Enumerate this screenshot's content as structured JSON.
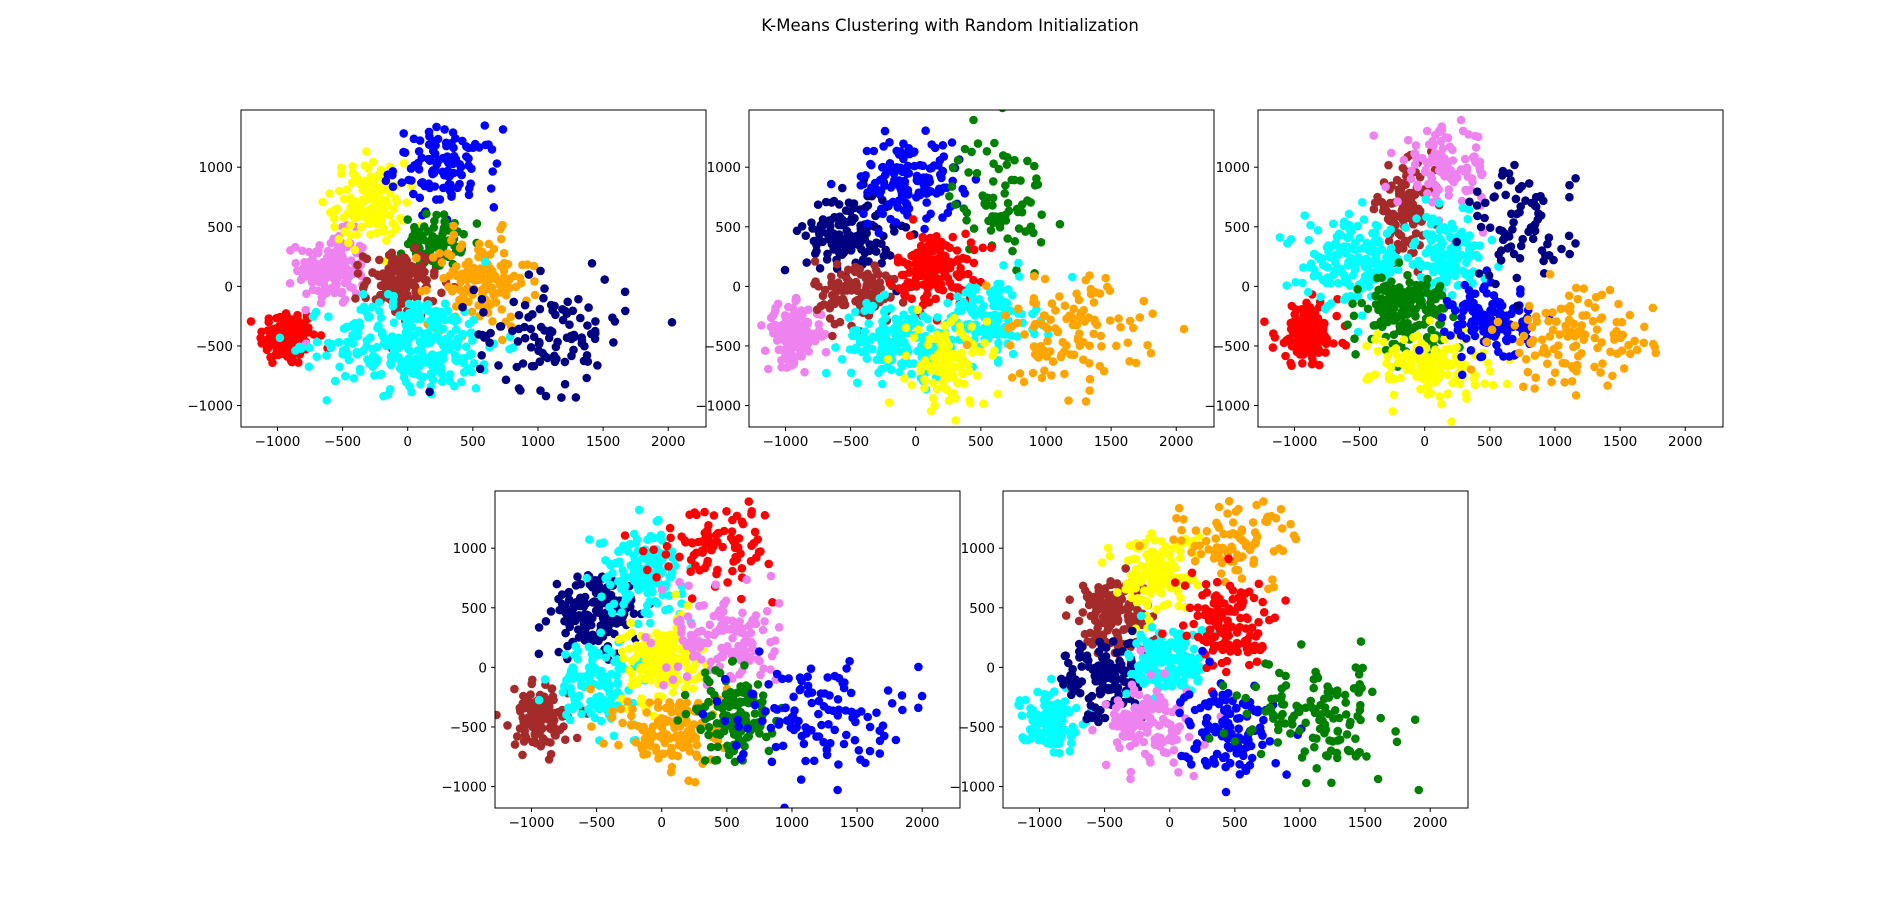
{
  "figure": {
    "title": "K-Means Clustering with Random Initialization"
  },
  "colors": {
    "red": "#ff0000",
    "navy": "#000080",
    "blue": "#0000ff",
    "green": "#008000",
    "yellow": "#ffff00",
    "orange": "#ffa500",
    "cyan": "#00ffff",
    "violet": "#ee82ee",
    "brown": "#a52a2a"
  },
  "chart_data": [
    {
      "type": "scatter",
      "xlim": [
        -1280,
        2290
      ],
      "ylim": [
        -1180,
        1480
      ],
      "xticks": [
        -1000,
        -500,
        0,
        500,
        1000,
        1500,
        2000
      ],
      "yticks": [
        -1000,
        -500,
        0,
        500,
        1000
      ],
      "xtick_labels": [
        "−1000",
        "−500",
        "0",
        "500",
        "1000",
        "1500",
        "2000"
      ],
      "ytick_labels": [
        "−1000",
        "−500",
        "0",
        "500",
        "1000"
      ],
      "grid": false,
      "clusters": [
        {
          "color": "red",
          "cx": -920,
          "cy": -430,
          "sx": 110,
          "sy": 120,
          "n": 130
        },
        {
          "color": "violet",
          "cx": -580,
          "cy": 150,
          "sx": 130,
          "sy": 150,
          "n": 150
        },
        {
          "color": "yellow",
          "cx": -300,
          "cy": 700,
          "sx": 140,
          "sy": 170,
          "n": 140
        },
        {
          "color": "blue",
          "cx": 300,
          "cy": 1000,
          "sx": 200,
          "sy": 160,
          "n": 110
        },
        {
          "color": "green",
          "cx": 200,
          "cy": 380,
          "sx": 110,
          "sy": 110,
          "n": 80
        },
        {
          "color": "brown",
          "cx": -50,
          "cy": 20,
          "sx": 140,
          "sy": 140,
          "n": 130
        },
        {
          "color": "orange",
          "cx": 550,
          "cy": 50,
          "sx": 190,
          "sy": 190,
          "n": 140
        },
        {
          "color": "cyan",
          "cx": 50,
          "cy": -480,
          "sx": 330,
          "sy": 200,
          "n": 300
        },
        {
          "color": "navy",
          "cx": 1100,
          "cy": -400,
          "sx": 290,
          "sy": 230,
          "n": 110
        }
      ]
    },
    {
      "type": "scatter",
      "xlim": [
        -1280,
        2290
      ],
      "ylim": [
        -1180,
        1480
      ],
      "xticks": [
        -1000,
        -500,
        0,
        500,
        1000,
        1500,
        2000
      ],
      "yticks": [
        -1000,
        -500,
        0,
        500,
        1000
      ],
      "xtick_labels": [
        "−1000",
        "−500",
        "0",
        "500",
        "1000",
        "1500",
        "2000"
      ],
      "ytick_labels": [
        "−1000",
        "−500",
        "0",
        "500",
        "1000"
      ],
      "grid": false,
      "clusters": [
        {
          "color": "violet",
          "cx": -940,
          "cy": -400,
          "sx": 110,
          "sy": 120,
          "n": 130
        },
        {
          "color": "navy",
          "cx": -500,
          "cy": 450,
          "sx": 170,
          "sy": 170,
          "n": 160
        },
        {
          "color": "blue",
          "cx": -50,
          "cy": 900,
          "sx": 200,
          "sy": 170,
          "n": 140
        },
        {
          "color": "green",
          "cx": 650,
          "cy": 750,
          "sx": 180,
          "sy": 260,
          "n": 80
        },
        {
          "color": "brown",
          "cx": -450,
          "cy": -50,
          "sx": 160,
          "sy": 140,
          "n": 120
        },
        {
          "color": "red",
          "cx": 150,
          "cy": 150,
          "sx": 150,
          "sy": 150,
          "n": 160
        },
        {
          "color": "cyan",
          "cx": -150,
          "cy": -450,
          "sx": 200,
          "sy": 160,
          "n": 150
        },
        {
          "color": "cyan",
          "cx": 550,
          "cy": -270,
          "sx": 180,
          "sy": 160,
          "n": 130
        },
        {
          "color": "yellow",
          "cx": 250,
          "cy": -650,
          "sx": 150,
          "sy": 190,
          "n": 120
        },
        {
          "color": "orange",
          "cx": 1150,
          "cy": -400,
          "sx": 300,
          "sy": 230,
          "n": 120
        }
      ]
    },
    {
      "type": "scatter",
      "xlim": [
        -1280,
        2290
      ],
      "ylim": [
        -1180,
        1480
      ],
      "xticks": [
        -1000,
        -500,
        0,
        500,
        1000,
        1500,
        2000
      ],
      "yticks": [
        -1000,
        -500,
        0,
        500,
        1000
      ],
      "xtick_labels": [
        "−1000",
        "−500",
        "0",
        "500",
        "1000",
        "1500",
        "2000"
      ],
      "ytick_labels": [
        "−1000",
        "−500",
        "0",
        "500",
        "1000"
      ],
      "grid": false,
      "clusters": [
        {
          "color": "red",
          "cx": -900,
          "cy": -400,
          "sx": 120,
          "sy": 130,
          "n": 140
        },
        {
          "color": "brown",
          "cx": -150,
          "cy": 650,
          "sx": 110,
          "sy": 170,
          "n": 110
        },
        {
          "color": "violet",
          "cx": 150,
          "cy": 1000,
          "sx": 180,
          "sy": 160,
          "n": 110
        },
        {
          "color": "cyan",
          "cx": -550,
          "cy": 200,
          "sx": 190,
          "sy": 170,
          "n": 160
        },
        {
          "color": "cyan",
          "cx": 150,
          "cy": 250,
          "sx": 160,
          "sy": 160,
          "n": 140
        },
        {
          "color": "green",
          "cx": -150,
          "cy": -200,
          "sx": 160,
          "sy": 150,
          "n": 160
        },
        {
          "color": "yellow",
          "cx": 50,
          "cy": -650,
          "sx": 230,
          "sy": 150,
          "n": 140
        },
        {
          "color": "blue",
          "cx": 500,
          "cy": -300,
          "sx": 150,
          "sy": 160,
          "n": 130
        },
        {
          "color": "navy",
          "cx": 750,
          "cy": 500,
          "sx": 200,
          "sy": 250,
          "n": 80
        },
        {
          "color": "orange",
          "cx": 1150,
          "cy": -450,
          "sx": 300,
          "sy": 200,
          "n": 120
        }
      ]
    },
    {
      "type": "scatter",
      "xlim": [
        -1280,
        2290
      ],
      "ylim": [
        -1180,
        1480
      ],
      "xticks": [
        -1000,
        -500,
        0,
        500,
        1000,
        1500,
        2000
      ],
      "yticks": [
        -1000,
        -500,
        0,
        500,
        1000
      ],
      "xtick_labels": [
        "−1000",
        "−500",
        "0",
        "500",
        "1000",
        "1500",
        "2000"
      ],
      "ytick_labels": [
        "−1000",
        "−500",
        "0",
        "500",
        "1000"
      ],
      "grid": false,
      "clusters": [
        {
          "color": "brown",
          "cx": -930,
          "cy": -430,
          "sx": 110,
          "sy": 120,
          "n": 130
        },
        {
          "color": "navy",
          "cx": -500,
          "cy": 450,
          "sx": 170,
          "sy": 170,
          "n": 160
        },
        {
          "color": "cyan",
          "cx": -150,
          "cy": 800,
          "sx": 160,
          "sy": 170,
          "n": 140
        },
        {
          "color": "red",
          "cx": 450,
          "cy": 1050,
          "sx": 250,
          "sy": 170,
          "n": 90
        },
        {
          "color": "cyan",
          "cx": -500,
          "cy": -150,
          "sx": 150,
          "sy": 170,
          "n": 130
        },
        {
          "color": "yellow",
          "cx": 0,
          "cy": 50,
          "sx": 150,
          "sy": 170,
          "n": 170
        },
        {
          "color": "violet",
          "cx": 500,
          "cy": 250,
          "sx": 200,
          "sy": 200,
          "n": 130
        },
        {
          "color": "orange",
          "cx": 100,
          "cy": -550,
          "sx": 200,
          "sy": 170,
          "n": 140
        },
        {
          "color": "green",
          "cx": 550,
          "cy": -400,
          "sx": 150,
          "sy": 200,
          "n": 130
        },
        {
          "color": "blue",
          "cx": 1150,
          "cy": -400,
          "sx": 300,
          "sy": 220,
          "n": 120
        }
      ]
    },
    {
      "type": "scatter",
      "xlim": [
        -1280,
        2290
      ],
      "ylim": [
        -1180,
        1480
      ],
      "xticks": [
        -1000,
        -500,
        0,
        500,
        1000,
        1500,
        2000
      ],
      "yticks": [
        -1000,
        -500,
        0,
        500,
        1000
      ],
      "xtick_labels": [
        "−1000",
        "−500",
        "0",
        "500",
        "1000",
        "1500",
        "2000"
      ],
      "ytick_labels": [
        "−1000",
        "−500",
        "0",
        "500",
        "1000"
      ],
      "grid": false,
      "clusters": [
        {
          "color": "cyan",
          "cx": -930,
          "cy": -450,
          "sx": 110,
          "sy": 120,
          "n": 130
        },
        {
          "color": "brown",
          "cx": -450,
          "cy": 450,
          "sx": 150,
          "sy": 170,
          "n": 140
        },
        {
          "color": "yellow",
          "cx": -100,
          "cy": 800,
          "sx": 150,
          "sy": 170,
          "n": 140
        },
        {
          "color": "orange",
          "cx": 500,
          "cy": 1050,
          "sx": 250,
          "sy": 170,
          "n": 90
        },
        {
          "color": "navy",
          "cx": -500,
          "cy": -100,
          "sx": 150,
          "sy": 170,
          "n": 130
        },
        {
          "color": "cyan",
          "cx": 0,
          "cy": 50,
          "sx": 150,
          "sy": 150,
          "n": 150
        },
        {
          "color": "red",
          "cx": 450,
          "cy": 350,
          "sx": 170,
          "sy": 200,
          "n": 130
        },
        {
          "color": "violet",
          "cx": -150,
          "cy": -500,
          "sx": 170,
          "sy": 170,
          "n": 130
        },
        {
          "color": "blue",
          "cx": 450,
          "cy": -500,
          "sx": 170,
          "sy": 190,
          "n": 130
        },
        {
          "color": "green",
          "cx": 1100,
          "cy": -400,
          "sx": 300,
          "sy": 220,
          "n": 130
        }
      ]
    }
  ]
}
